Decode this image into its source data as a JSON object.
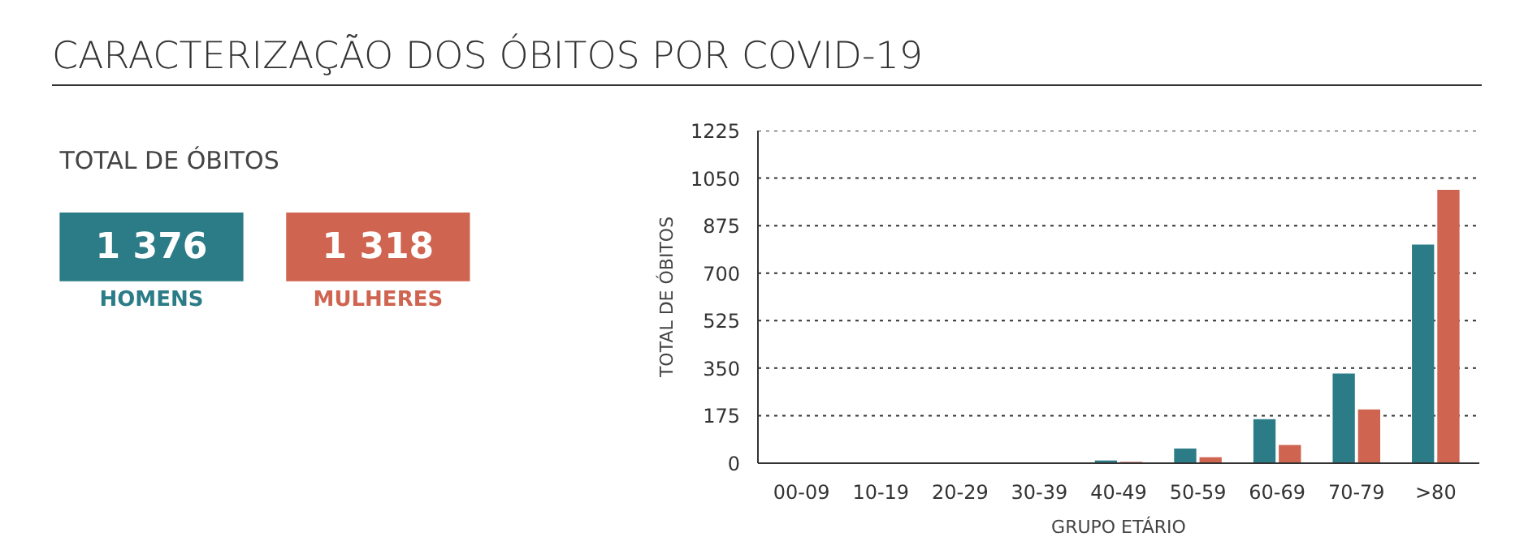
{
  "chart_data": [
    {
      "type": "other",
      "title": "CARACTERIZAÇÃO DOS ÓBITOS POR COVID-19",
      "subtitle": "TOTAL DE ÓBITOS",
      "categories": [
        "HOMENS",
        "MULHERES"
      ],
      "value_labels": [
        "1 376",
        "1 318"
      ],
      "colors": [
        "#2b7c87",
        "#cf6450"
      ]
    },
    {
      "type": "bar",
      "xlabel": "GRUPO ETÁRIO",
      "ylabel": "TOTAL DE ÓBITOS",
      "categories": [
        "00-09",
        "10-19",
        "20-29",
        "30-39",
        "40-49",
        "50-59",
        "60-69",
        "70-79",
        ">80"
      ],
      "series": [
        {
          "color": "#2b7c87",
          "values": [
            0,
            0,
            0,
            0,
            10,
            54,
            162,
            330,
            805
          ]
        },
        {
          "color": "#cf6450",
          "values": [
            0,
            0,
            0,
            0,
            5,
            22,
            67,
            198,
            1007
          ]
        }
      ],
      "ylim": [
        0,
        1225
      ],
      "yticks": [
        0,
        175,
        350,
        525,
        700,
        875,
        1050,
        1225
      ],
      "grid": "y"
    }
  ]
}
